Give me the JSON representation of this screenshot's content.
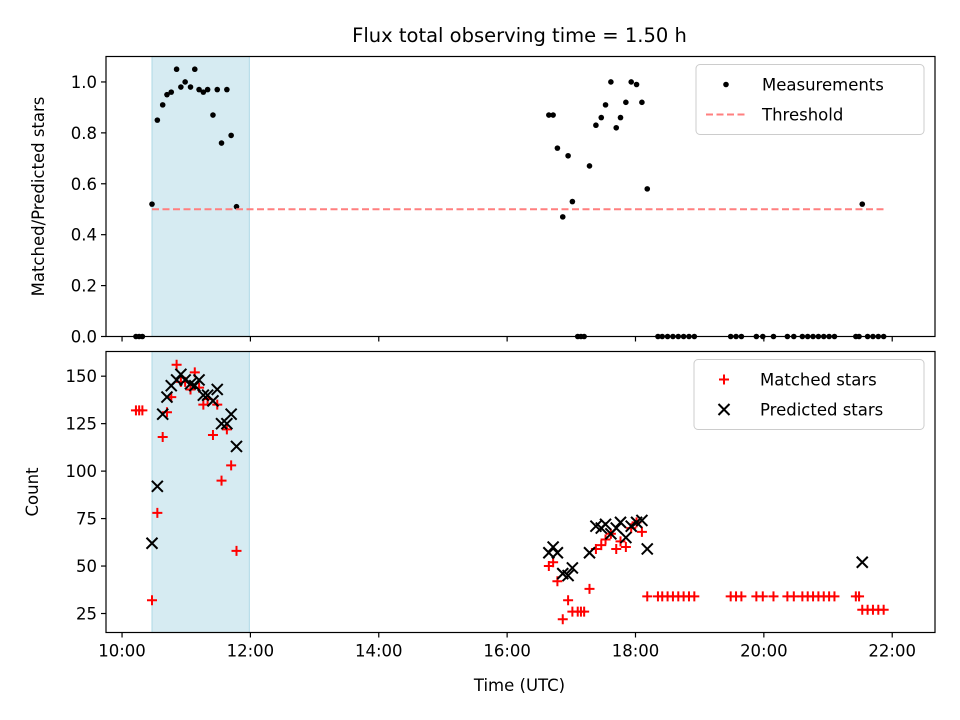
{
  "figure": {
    "title": "Flux total observing time = 1.50 h",
    "x_label": "Time (UTC)"
  },
  "chart_data": [
    {
      "type": "scatter",
      "title": "Flux total observing time = 1.50 h",
      "xlabel": "",
      "ylabel": "Matched/Predicted stars",
      "xlim": [
        "09:45",
        "22:40"
      ],
      "ylim": [
        0,
        1.1
      ],
      "x_ticks": [
        "10:00",
        "12:00",
        "14:00",
        "16:00",
        "18:00",
        "20:00",
        "22:00"
      ],
      "y_ticks": [
        "0.0",
        "0.2",
        "0.4",
        "0.6",
        "0.8",
        "1.0"
      ],
      "grid": false,
      "legend_position": "top-right",
      "shaded_region": {
        "x": [
          "10:28",
          "11:59"
        ],
        "color": "#add8e6"
      },
      "series": [
        {
          "name": "Measurements",
          "marker": "dot",
          "color": "#000000",
          "points": [
            [
              "10:13",
              0.0
            ],
            [
              "10:16",
              0.0
            ],
            [
              "10:19",
              0.0
            ],
            [
              "10:28",
              0.52
            ],
            [
              "10:33",
              0.85
            ],
            [
              "10:38",
              0.91
            ],
            [
              "10:42",
              0.95
            ],
            [
              "10:46",
              0.96
            ],
            [
              "10:51",
              1.05
            ],
            [
              "10:55",
              0.98
            ],
            [
              "10:59",
              1.0
            ],
            [
              "11:04",
              0.98
            ],
            [
              "11:08",
              1.05
            ],
            [
              "11:12",
              0.97
            ],
            [
              "11:16",
              0.96
            ],
            [
              "11:20",
              0.97
            ],
            [
              "11:25",
              0.87
            ],
            [
              "11:29",
              0.97
            ],
            [
              "11:33",
              0.76
            ],
            [
              "11:38",
              0.97
            ],
            [
              "11:42",
              0.79
            ],
            [
              "11:47",
              0.51
            ],
            [
              "16:39",
              0.87
            ],
            [
              "16:43",
              0.87
            ],
            [
              "16:47",
              0.74
            ],
            [
              "16:52",
              0.47
            ],
            [
              "16:57",
              0.71
            ],
            [
              "17:01",
              0.53
            ],
            [
              "17:06",
              0.0
            ],
            [
              "17:09",
              0.0
            ],
            [
              "17:12",
              0.0
            ],
            [
              "17:17",
              0.67
            ],
            [
              "17:23",
              0.83
            ],
            [
              "17:28",
              0.86
            ],
            [
              "17:32",
              0.91
            ],
            [
              "17:37",
              1.0
            ],
            [
              "17:42",
              0.82
            ],
            [
              "17:46",
              0.86
            ],
            [
              "17:51",
              0.92
            ],
            [
              "17:56",
              1.0
            ],
            [
              "18:01",
              0.99
            ],
            [
              "18:06",
              0.92
            ],
            [
              "18:11",
              0.58
            ],
            [
              "18:21",
              0.0
            ],
            [
              "18:25",
              0.0
            ],
            [
              "18:30",
              0.0
            ],
            [
              "18:35",
              0.0
            ],
            [
              "18:40",
              0.0
            ],
            [
              "18:45",
              0.0
            ],
            [
              "18:50",
              0.0
            ],
            [
              "18:55",
              0.0
            ],
            [
              "19:29",
              0.0
            ],
            [
              "19:34",
              0.0
            ],
            [
              "19:39",
              0.0
            ],
            [
              "19:53",
              0.0
            ],
            [
              "19:59",
              0.0
            ],
            [
              "20:09",
              0.0
            ],
            [
              "20:22",
              0.0
            ],
            [
              "20:28",
              0.0
            ],
            [
              "20:36",
              0.0
            ],
            [
              "20:41",
              0.0
            ],
            [
              "20:46",
              0.0
            ],
            [
              "20:51",
              0.0
            ],
            [
              "20:56",
              0.0
            ],
            [
              "21:01",
              0.0
            ],
            [
              "21:06",
              0.0
            ],
            [
              "21:26",
              0.0
            ],
            [
              "21:29",
              0.0
            ],
            [
              "21:32",
              0.52
            ],
            [
              "21:37",
              0.0
            ],
            [
              "21:42",
              0.0
            ],
            [
              "21:47",
              0.0
            ],
            [
              "21:52",
              0.0
            ]
          ]
        },
        {
          "name": "Threshold",
          "type": "line",
          "style": "dashed",
          "color": "#ff7f7f",
          "points": [
            [
              "10:28",
              0.5
            ],
            [
              "21:55",
              0.5
            ]
          ]
        }
      ]
    },
    {
      "type": "scatter",
      "xlabel": "Time (UTC)",
      "ylabel": "Count",
      "xlim": [
        "09:45",
        "22:40"
      ],
      "ylim": [
        15,
        163
      ],
      "x_ticks": [
        "10:00",
        "12:00",
        "14:00",
        "16:00",
        "18:00",
        "20:00",
        "22:00"
      ],
      "y_ticks": [
        "25",
        "50",
        "75",
        "100",
        "125",
        "150"
      ],
      "grid": false,
      "legend_position": "top-right",
      "shaded_region": {
        "x": [
          "10:28",
          "11:59"
        ],
        "color": "#add8e6"
      },
      "series": [
        {
          "name": "Matched stars",
          "marker": "plus",
          "color": "#ff0000",
          "points": [
            [
              "10:13",
              132
            ],
            [
              "10:16",
              132
            ],
            [
              "10:19",
              132
            ],
            [
              "10:28",
              32
            ],
            [
              "10:33",
              78
            ],
            [
              "10:38",
              118
            ],
            [
              "10:42",
              131
            ],
            [
              "10:46",
              139
            ],
            [
              "10:51",
              156
            ],
            [
              "10:55",
              147
            ],
            [
              "10:59",
              147
            ],
            [
              "11:04",
              143
            ],
            [
              "11:08",
              152
            ],
            [
              "11:12",
              144
            ],
            [
              "11:16",
              135
            ],
            [
              "11:20",
              138
            ],
            [
              "11:25",
              119
            ],
            [
              "11:29",
              135
            ],
            [
              "11:33",
              95
            ],
            [
              "11:38",
              122
            ],
            [
              "11:42",
              103
            ],
            [
              "11:47",
              58
            ],
            [
              "16:39",
              50
            ],
            [
              "16:43",
              52
            ],
            [
              "16:47",
              42
            ],
            [
              "16:52",
              22
            ],
            [
              "16:57",
              32
            ],
            [
              "17:01",
              26
            ],
            [
              "17:06",
              26
            ],
            [
              "17:09",
              26
            ],
            [
              "17:12",
              26
            ],
            [
              "17:17",
              38
            ],
            [
              "17:23",
              59
            ],
            [
              "17:28",
              61
            ],
            [
              "17:32",
              64
            ],
            [
              "17:37",
              67
            ],
            [
              "17:42",
              59
            ],
            [
              "17:46",
              63
            ],
            [
              "17:51",
              60
            ],
            [
              "17:56",
              70
            ],
            [
              "18:01",
              73
            ],
            [
              "18:06",
              68
            ],
            [
              "18:11",
              34
            ],
            [
              "18:21",
              34
            ],
            [
              "18:25",
              34
            ],
            [
              "18:30",
              34
            ],
            [
              "18:35",
              34
            ],
            [
              "18:40",
              34
            ],
            [
              "18:45",
              34
            ],
            [
              "18:50",
              34
            ],
            [
              "18:55",
              34
            ],
            [
              "19:29",
              34
            ],
            [
              "19:34",
              34
            ],
            [
              "19:39",
              34
            ],
            [
              "19:53",
              34
            ],
            [
              "19:59",
              34
            ],
            [
              "20:09",
              34
            ],
            [
              "20:22",
              34
            ],
            [
              "20:28",
              34
            ],
            [
              "20:36",
              34
            ],
            [
              "20:41",
              34
            ],
            [
              "20:46",
              34
            ],
            [
              "20:51",
              34
            ],
            [
              "20:56",
              34
            ],
            [
              "21:01",
              34
            ],
            [
              "21:06",
              34
            ],
            [
              "21:26",
              34
            ],
            [
              "21:29",
              34
            ],
            [
              "21:32",
              27
            ],
            [
              "21:37",
              27
            ],
            [
              "21:42",
              27
            ],
            [
              "21:47",
              27
            ],
            [
              "21:52",
              27
            ]
          ]
        },
        {
          "name": "Predicted stars",
          "marker": "x",
          "color": "#000000",
          "points": [
            [
              "10:28",
              62
            ],
            [
              "10:33",
              92
            ],
            [
              "10:38",
              130
            ],
            [
              "10:42",
              139
            ],
            [
              "10:46",
              145
            ],
            [
              "10:51",
              148
            ],
            [
              "10:55",
              151
            ],
            [
              "10:59",
              148
            ],
            [
              "11:04",
              146
            ],
            [
              "11:08",
              145
            ],
            [
              "11:12",
              148
            ],
            [
              "11:16",
              140
            ],
            [
              "11:20",
              140
            ],
            [
              "11:25",
              137
            ],
            [
              "11:29",
              143
            ],
            [
              "11:33",
              125
            ],
            [
              "11:38",
              125
            ],
            [
              "11:42",
              130
            ],
            [
              "11:47",
              113
            ],
            [
              "16:39",
              57
            ],
            [
              "16:43",
              60
            ],
            [
              "16:47",
              57
            ],
            [
              "16:52",
              46
            ],
            [
              "16:57",
              45
            ],
            [
              "17:01",
              49
            ],
            [
              "17:17",
              57
            ],
            [
              "17:23",
              71
            ],
            [
              "17:28",
              70
            ],
            [
              "17:32",
              72
            ],
            [
              "17:37",
              67
            ],
            [
              "17:42",
              70
            ],
            [
              "17:46",
              73
            ],
            [
              "17:51",
              65
            ],
            [
              "17:56",
              71
            ],
            [
              "18:01",
              73
            ],
            [
              "18:06",
              74
            ],
            [
              "18:11",
              59
            ],
            [
              "21:32",
              52
            ]
          ]
        }
      ]
    }
  ]
}
